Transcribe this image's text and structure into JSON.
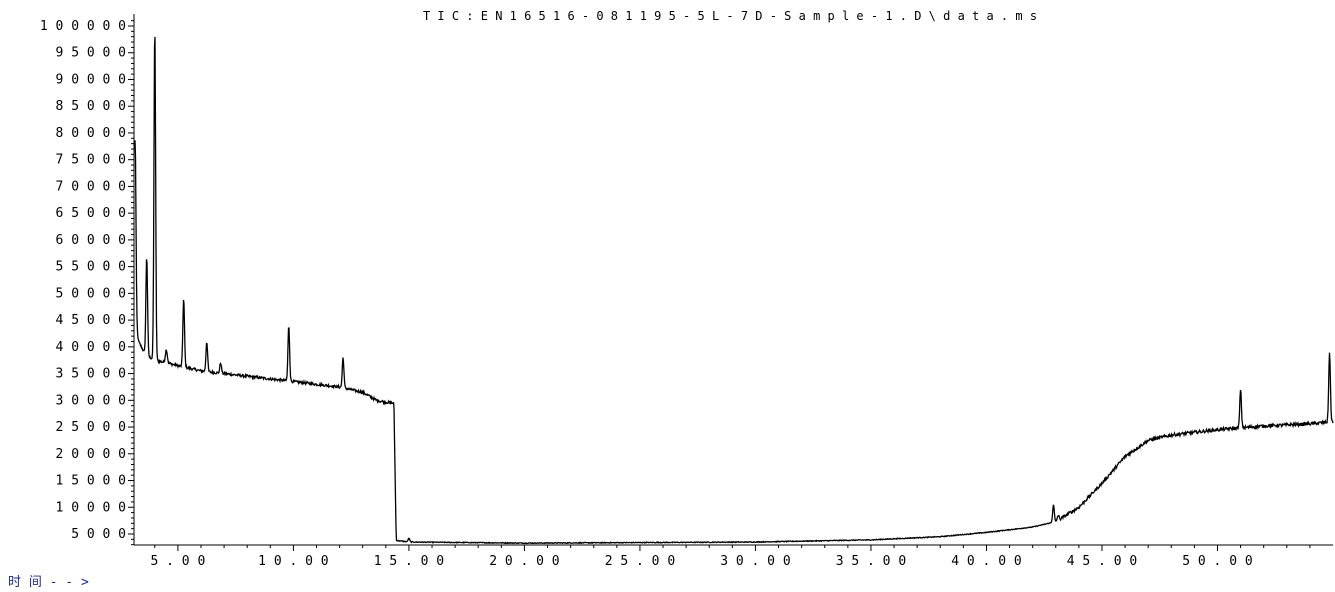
{
  "chart_data": {
    "type": "line",
    "title": "T I C :   E N 1 6 5 1 6 - 0 8 1 1 9 5 - 5 L - 7 D - S a m p l e - 1 . D \\ d a t a . m s",
    "xlabel": "时 间 - - >",
    "ylabel": "",
    "xlim": [
      3.1,
      55.0
    ],
    "ylim": [
      3000,
      101000
    ],
    "grid": false,
    "x_ticks": [
      5,
      10,
      15,
      20,
      25,
      30,
      35,
      40,
      45,
      50
    ],
    "x_tick_labels": [
      "5 . 0 0",
      "1 0 . 0 0",
      "1 5 . 0 0",
      "2 0 . 0 0",
      "2 5 . 0 0",
      "3 0 . 0 0",
      "3 5 . 0 0",
      "4 0 . 0 0",
      "4 5 . 0 0",
      "5 0 . 0 0"
    ],
    "y_ticks": [
      5000,
      10000,
      15000,
      20000,
      25000,
      30000,
      35000,
      40000,
      45000,
      50000,
      55000,
      60000,
      65000,
      70000,
      75000,
      80000,
      85000,
      90000,
      95000,
      100000
    ],
    "y_tick_labels": [
      "5 0 0 0",
      "1 0 0 0 0",
      "1 5 0 0 0",
      "2 0 0 0 0",
      "2 5 0 0 0",
      "3 0 0 0 0",
      "3 5 0 0 0",
      "4 0 0 0 0",
      "4 5 0 0 0",
      "5 0 0 0 0",
      "5 5 0 0 0",
      "6 0 0 0 0",
      "6 5 0 0 0",
      "7 0 0 0 0",
      "7 5 0 0 0",
      "8 0 0 0 0",
      "8 5 0 0 0",
      "9 0 0 0 0",
      "9 5 0 0 0",
      "1 0 0 0 0 0"
    ],
    "series": [
      {
        "color": "#000000",
        "baseline": [
          [
            3.1,
            46000
          ],
          [
            3.3,
            41000
          ],
          [
            3.6,
            38500
          ],
          [
            4.0,
            37500
          ],
          [
            5.0,
            36500
          ],
          [
            6.0,
            35500
          ],
          [
            7.0,
            35000
          ],
          [
            8.0,
            34500
          ],
          [
            9.0,
            34000
          ],
          [
            10.0,
            33500
          ],
          [
            11.0,
            33000
          ],
          [
            12.0,
            32500
          ],
          [
            13.0,
            31500
          ],
          [
            13.6,
            30000
          ],
          [
            14.2,
            29500
          ],
          [
            14.35,
            29500
          ],
          [
            14.45,
            3800
          ],
          [
            15.0,
            3500
          ],
          [
            20.0,
            3300
          ],
          [
            25.0,
            3400
          ],
          [
            30.0,
            3500
          ],
          [
            35.0,
            3900
          ],
          [
            38.0,
            4500
          ],
          [
            40.0,
            5300
          ],
          [
            42.0,
            6300
          ],
          [
            43.0,
            7300
          ],
          [
            44.0,
            10000
          ],
          [
            45.0,
            14500
          ],
          [
            46.0,
            19500
          ],
          [
            47.0,
            22500
          ],
          [
            48.0,
            23500
          ],
          [
            50.0,
            24500
          ],
          [
            52.0,
            25200
          ],
          [
            54.0,
            25600
          ],
          [
            55.0,
            26000
          ]
        ],
        "peaks": [
          [
            3.15,
            79000,
            0.05
          ],
          [
            3.65,
            57000,
            0.05
          ],
          [
            4.0,
            100000,
            0.05
          ],
          [
            4.5,
            39500,
            0.06
          ],
          [
            5.25,
            49000,
            0.05
          ],
          [
            6.25,
            41000,
            0.05
          ],
          [
            6.85,
            37000,
            0.05
          ],
          [
            9.8,
            44000,
            0.05
          ],
          [
            12.15,
            38000,
            0.05
          ],
          [
            15.0,
            4200,
            0.05
          ],
          [
            42.9,
            10500,
            0.05
          ],
          [
            43.1,
            8500,
            0.05
          ],
          [
            51.0,
            32000,
            0.05
          ],
          [
            54.85,
            39000,
            0.05
          ]
        ]
      }
    ]
  }
}
